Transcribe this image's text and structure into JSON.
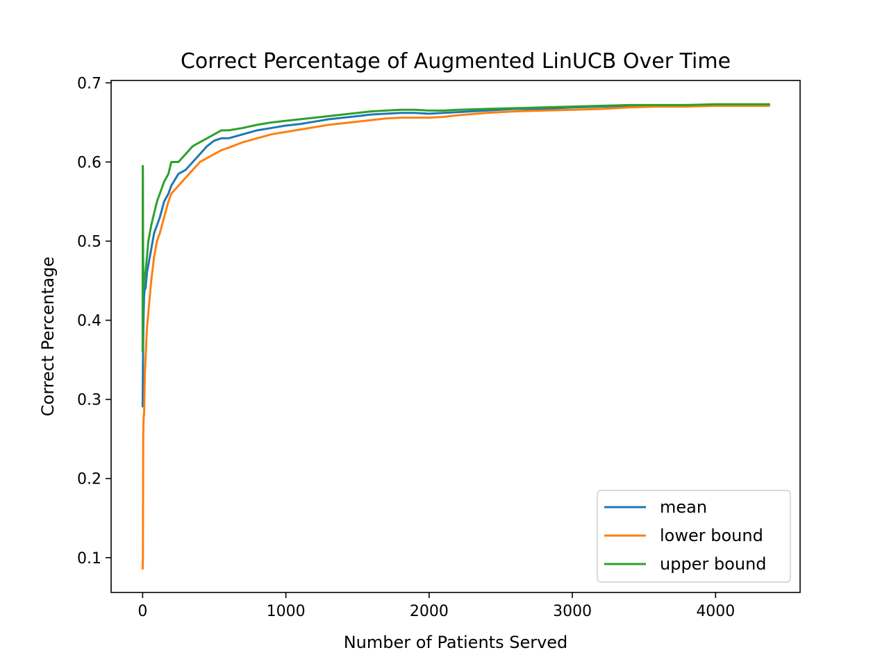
{
  "chart_data": {
    "type": "line",
    "title": "Correct Percentage of Augmented LinUCB Over Time",
    "xlabel": "Number of Patients Served",
    "ylabel": "Correct Percentage",
    "xlim": [
      -220,
      4590
    ],
    "ylim": [
      0.056,
      0.703
    ],
    "x_ticks": [
      0,
      1000,
      2000,
      3000,
      4000
    ],
    "x_tick_labels": [
      "0",
      "1000",
      "2000",
      "3000",
      "4000"
    ],
    "y_ticks": [
      0.1,
      0.2,
      0.3,
      0.4,
      0.5,
      0.6,
      0.7
    ],
    "y_tick_labels": [
      "0.1",
      "0.2",
      "0.3",
      "0.4",
      "0.5",
      "0.6",
      "0.7"
    ],
    "grid": false,
    "legend": {
      "position": "lower-right"
    },
    "series": [
      {
        "name": "mean",
        "color": "#1f77b4",
        "x": [
          0,
          3,
          6,
          10,
          15,
          20,
          30,
          40,
          50,
          60,
          80,
          100,
          120,
          150,
          180,
          200,
          250,
          300,
          350,
          400,
          450,
          500,
          550,
          600,
          700,
          800,
          900,
          1000,
          1100,
          1200,
          1300,
          1400,
          1500,
          1600,
          1700,
          1800,
          1900,
          2000,
          2100,
          2200,
          2400,
          2600,
          2800,
          3000,
          3200,
          3400,
          3600,
          3800,
          4000,
          4200,
          4380
        ],
        "y": [
          0.29,
          0.36,
          0.4,
          0.43,
          0.44,
          0.44,
          0.46,
          0.47,
          0.48,
          0.49,
          0.51,
          0.52,
          0.53,
          0.55,
          0.56,
          0.57,
          0.585,
          0.59,
          0.6,
          0.61,
          0.62,
          0.627,
          0.63,
          0.63,
          0.635,
          0.64,
          0.643,
          0.646,
          0.648,
          0.651,
          0.654,
          0.656,
          0.658,
          0.66,
          0.661,
          0.662,
          0.662,
          0.661,
          0.662,
          0.663,
          0.665,
          0.667,
          0.667,
          0.669,
          0.67,
          0.671,
          0.671,
          0.672,
          0.672,
          0.672,
          0.672
        ]
      },
      {
        "name": "lower bound",
        "color": "#ff7f0e",
        "x": [
          0,
          2,
          3,
          4,
          6,
          8,
          10,
          12,
          15,
          20,
          25,
          30,
          40,
          50,
          60,
          80,
          100,
          120,
          150,
          180,
          200,
          250,
          300,
          350,
          400,
          450,
          500,
          550,
          600,
          700,
          800,
          900,
          1000,
          1100,
          1200,
          1300,
          1400,
          1500,
          1600,
          1700,
          1800,
          1900,
          2000,
          2100,
          2200,
          2400,
          2600,
          2800,
          3000,
          3200,
          3400,
          3600,
          3800,
          4000,
          4200,
          4380
        ],
        "y": [
          0.085,
          0.1,
          0.18,
          0.25,
          0.27,
          0.28,
          0.28,
          0.3,
          0.33,
          0.35,
          0.37,
          0.39,
          0.41,
          0.43,
          0.45,
          0.48,
          0.5,
          0.51,
          0.53,
          0.55,
          0.56,
          0.57,
          0.58,
          0.59,
          0.6,
          0.605,
          0.61,
          0.615,
          0.618,
          0.625,
          0.63,
          0.635,
          0.638,
          0.641,
          0.644,
          0.647,
          0.649,
          0.651,
          0.653,
          0.655,
          0.656,
          0.656,
          0.656,
          0.657,
          0.659,
          0.662,
          0.664,
          0.665,
          0.666,
          0.667,
          0.669,
          0.67,
          0.67,
          0.671,
          0.671,
          0.671
        ]
      },
      {
        "name": "upper bound",
        "color": "#2ca02c",
        "x": [
          0,
          1,
          2,
          3,
          5,
          8,
          10,
          15,
          20,
          30,
          40,
          50,
          60,
          80,
          100,
          120,
          150,
          180,
          200,
          250,
          300,
          350,
          400,
          450,
          500,
          550,
          600,
          700,
          800,
          900,
          1000,
          1100,
          1200,
          1300,
          1400,
          1500,
          1600,
          1700,
          1800,
          1900,
          2000,
          2100,
          2200,
          2400,
          2600,
          2800,
          3000,
          3200,
          3400,
          3600,
          3800,
          4000,
          4200,
          4380
        ],
        "y": [
          0.36,
          0.595,
          0.59,
          0.5,
          0.45,
          0.44,
          0.45,
          0.46,
          0.46,
          0.48,
          0.5,
          0.51,
          0.52,
          0.535,
          0.55,
          0.56,
          0.575,
          0.585,
          0.6,
          0.6,
          0.61,
          0.62,
          0.625,
          0.63,
          0.635,
          0.64,
          0.64,
          0.643,
          0.647,
          0.65,
          0.652,
          0.654,
          0.656,
          0.658,
          0.66,
          0.662,
          0.664,
          0.665,
          0.666,
          0.666,
          0.665,
          0.665,
          0.666,
          0.667,
          0.668,
          0.669,
          0.67,
          0.671,
          0.672,
          0.672,
          0.672,
          0.673,
          0.673,
          0.673
        ]
      }
    ]
  }
}
